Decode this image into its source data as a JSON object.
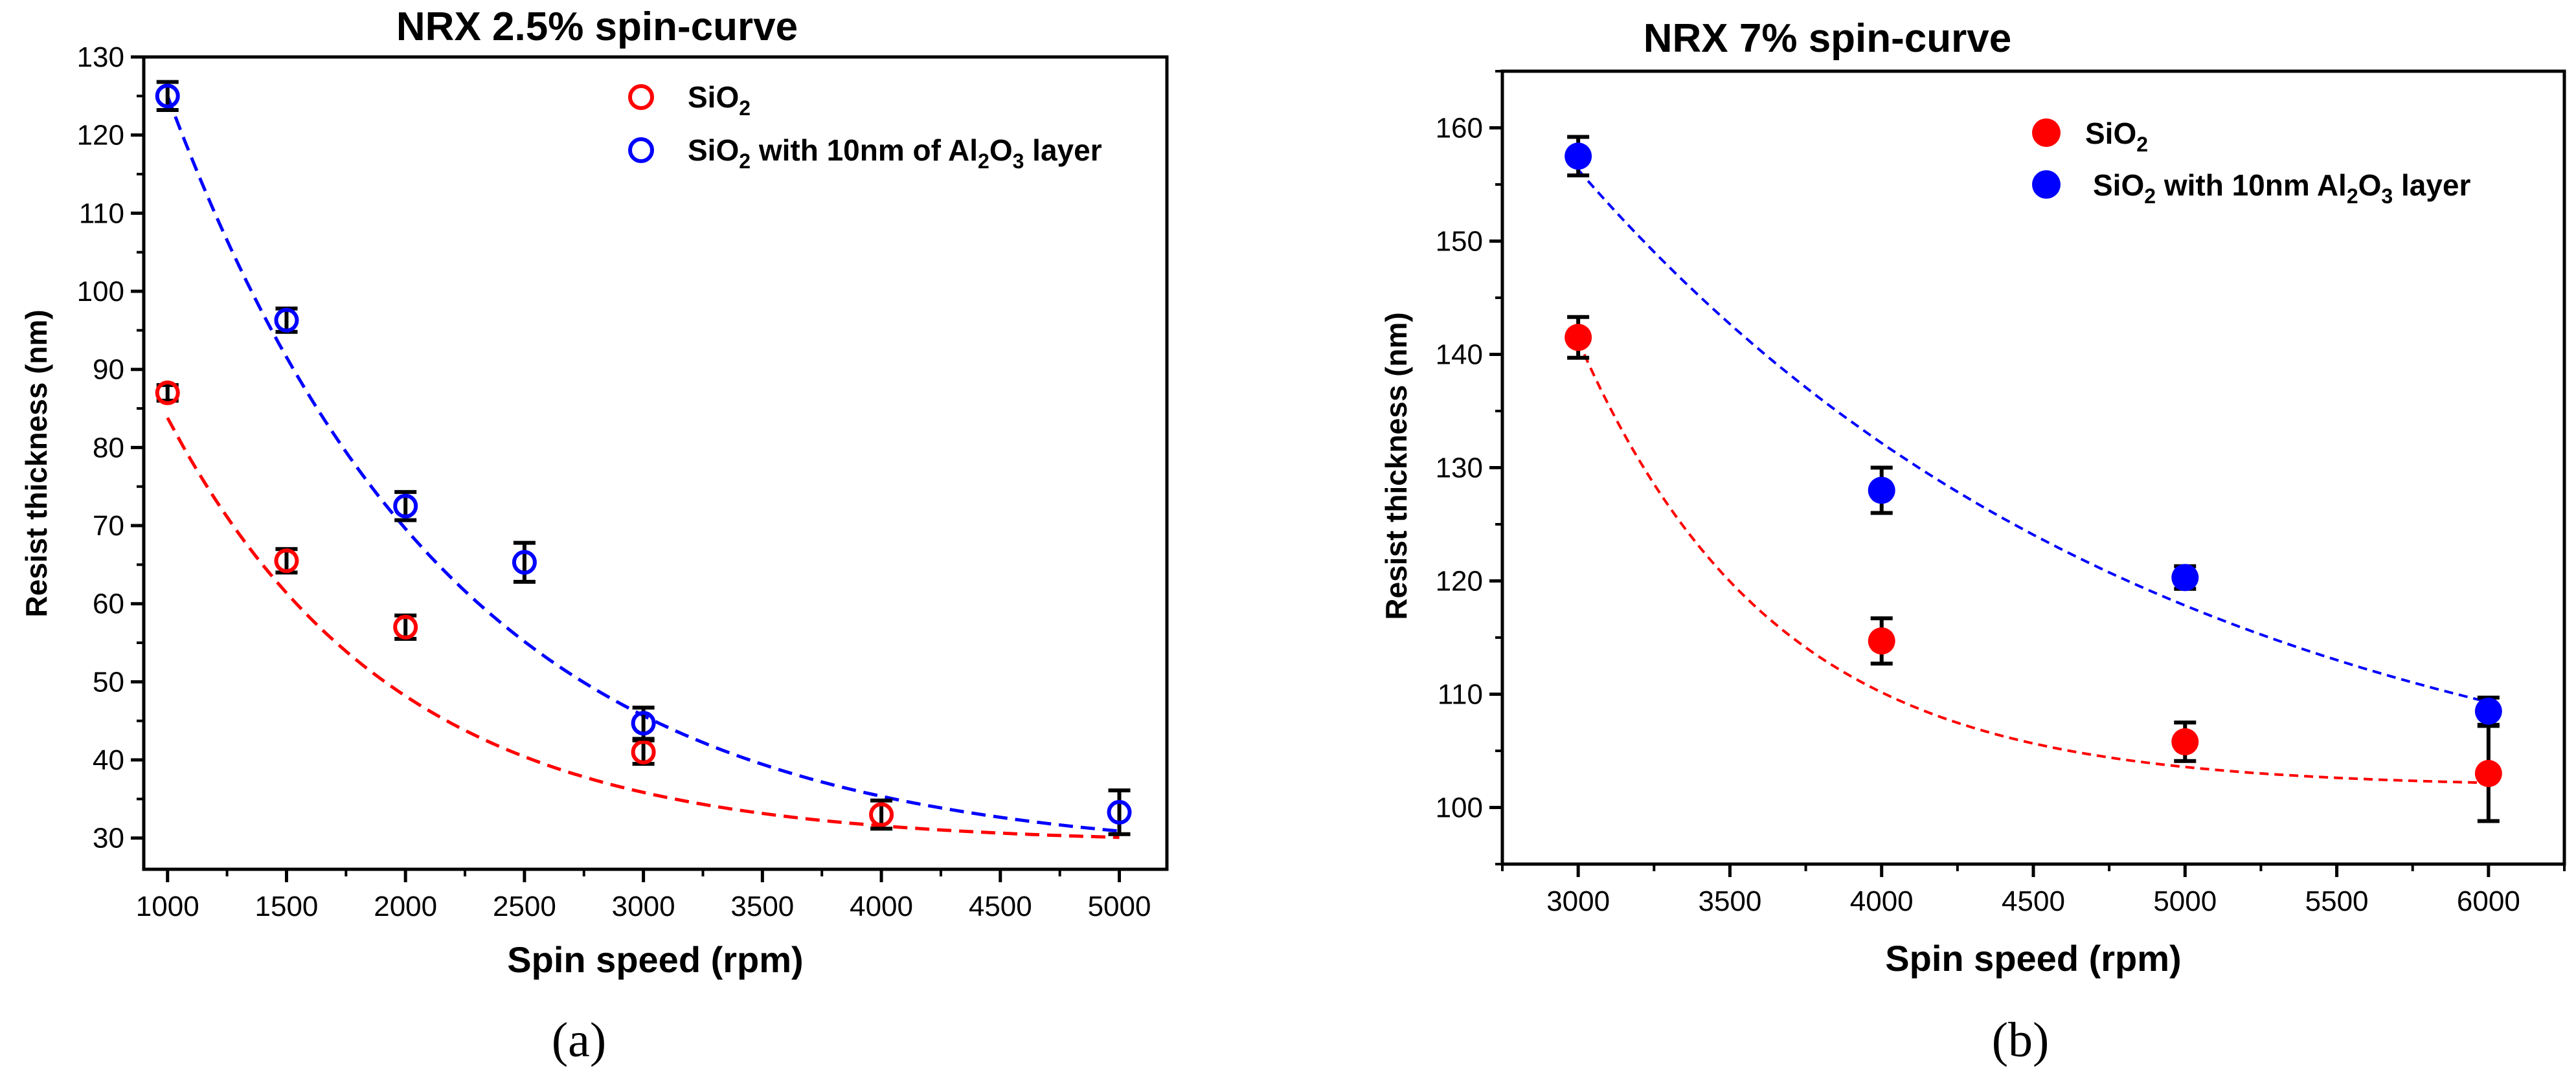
{
  "chart_data": [
    {
      "type": "scatter",
      "title": "NRX 2.5% spin-curve",
      "xlabel": "Spin speed (rpm)",
      "ylabel": "Resist thickness (nm)",
      "xlim": [
        900,
        5200
      ],
      "ylim": [
        26,
        130
      ],
      "xticks": [
        1000,
        1500,
        2000,
        2500,
        3000,
        3500,
        4000,
        4500,
        5000
      ],
      "yticks": [
        30,
        40,
        50,
        60,
        70,
        80,
        90,
        100,
        110,
        120,
        130
      ],
      "legend_position": "top-right",
      "marker": "open-circle",
      "caption": "(a)",
      "series": [
        {
          "name": "SiO2",
          "legend": {
            "base": "SiO",
            "sub1": "2",
            "mid": "",
            "sub2": "",
            "tail": ""
          },
          "color": "#ff0000",
          "x": [
            1000,
            1500,
            2000,
            3000,
            4000
          ],
          "y": [
            87,
            65.5,
            57,
            41,
            33
          ],
          "err": [
            1,
            1.5,
            1.5,
            1.5,
            1.8
          ],
          "fit": {
            "a": 54.5,
            "b": 0.00106,
            "c": 29.3,
            "x0": 1000,
            "x1": 5000
          }
        },
        {
          "name": "SiO2 with 10nm of Al2O3 layer",
          "legend": {
            "base": "SiO",
            "sub1": "2",
            "mid": " with 10nm of Al",
            "sub2": "2",
            "mid2": "O",
            "sub3": "3",
            "tail": " layer"
          },
          "color": "#0000ff",
          "x": [
            1000,
            1500,
            2000,
            2500,
            3000,
            5000
          ],
          "y": [
            125,
            96.3,
            72.5,
            65.3,
            44.7,
            33.3
          ],
          "err": [
            1.8,
            1.5,
            1.8,
            2.5,
            2,
            2.8
          ],
          "fit": {
            "a": 97.5,
            "b": 0.00084,
            "c": 27.5,
            "x0": 1000,
            "x1": 5000
          }
        }
      ]
    },
    {
      "type": "scatter",
      "title": "NRX 7% spin-curve",
      "xlabel": "Spin speed (rpm)",
      "ylabel": "Resist thickness (nm)",
      "xlim": [
        2750,
        6250
      ],
      "ylim": [
        95,
        165
      ],
      "xticks": [
        3000,
        3500,
        4000,
        4500,
        5000,
        5500,
        6000
      ],
      "yticks": [
        100,
        110,
        120,
        130,
        140,
        150,
        160
      ],
      "legend_position": "top-right",
      "marker": "filled-circle",
      "caption": "(b)",
      "series": [
        {
          "name": "SiO2",
          "legend": {
            "base": " SiO",
            "sub1": "2",
            "mid": "",
            "sub2": "",
            "tail": ""
          },
          "color": "#ff0000",
          "x": [
            3000,
            4000,
            5000,
            6000
          ],
          "y": [
            141.5,
            114.7,
            105.8,
            103
          ],
          "err": [
            1.8,
            2,
            1.7,
            4.2
          ],
          "fit": {
            "a": 39.4,
            "b": 0.00155,
            "c": 101.8,
            "x0": 3000,
            "x1": 6000
          }
        },
        {
          "name": "SiO2 with 10nm Al2O3 layer",
          "legend": {
            "base": "SiO",
            "sub1": "2",
            "mid": " with 10nm Al",
            "sub2": "2",
            "mid2": "O",
            "sub3": "3",
            "tail": " layer"
          },
          "color": "#0000ff",
          "x": [
            3000,
            4000,
            5000,
            6000
          ],
          "y": [
            157.5,
            128,
            120.3,
            108.5
          ],
          "err": [
            1.7,
            2,
            1,
            1.2
          ],
          "fit": {
            "a": 59.5,
            "b": 0.00052,
            "c": 96.8,
            "x0": 3000,
            "x1": 6000
          }
        }
      ]
    }
  ]
}
